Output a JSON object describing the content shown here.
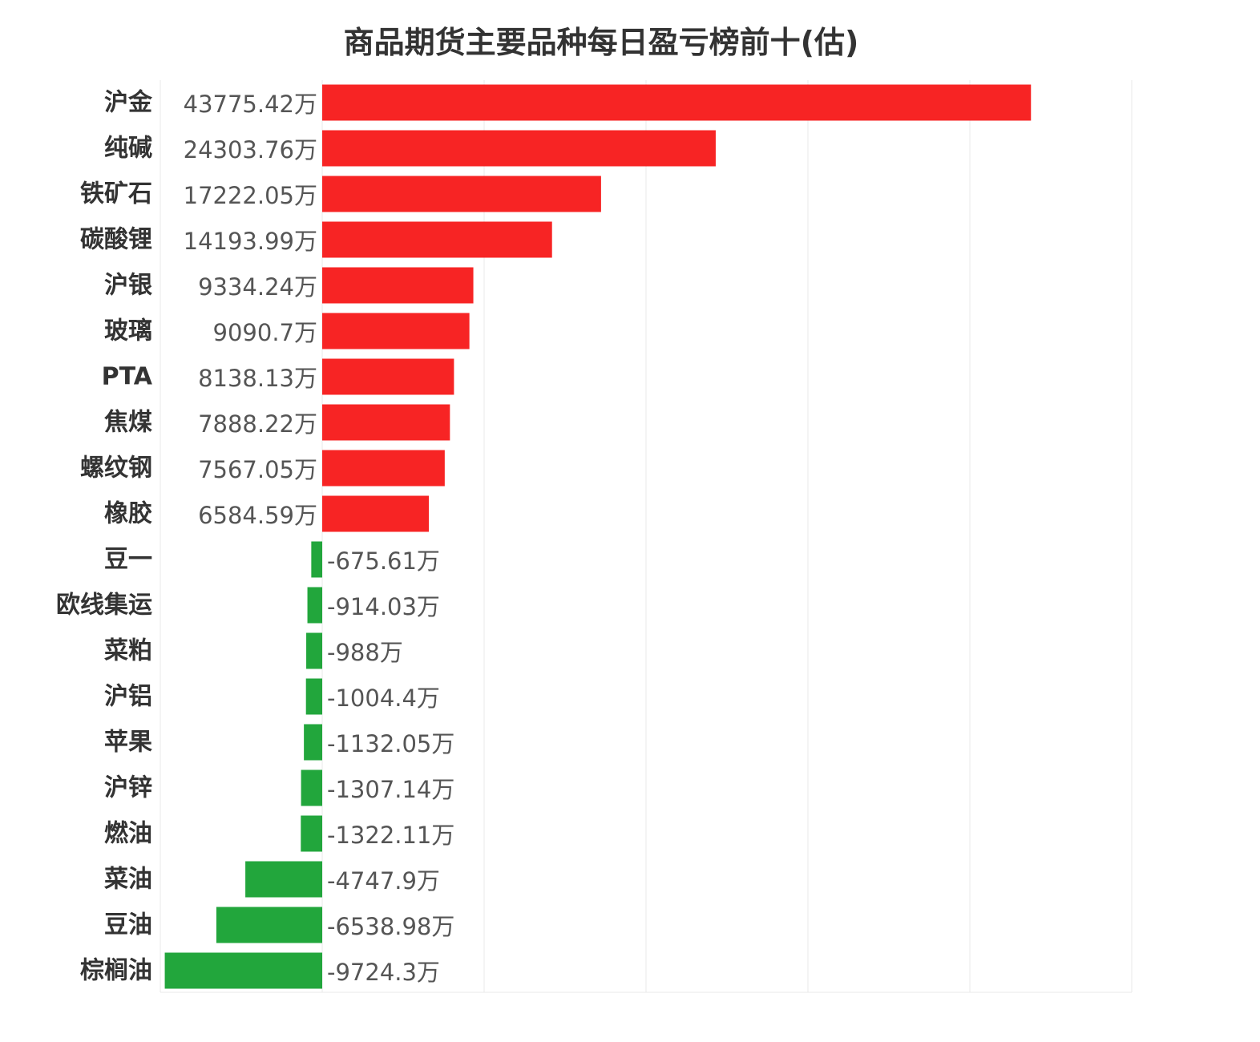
{
  "title": "商品期货主要品种每日盈亏榜前十(估)",
  "chart_data": {
    "type": "bar",
    "orientation": "horizontal",
    "title": "商品期货主要品种每日盈亏榜前十(估)",
    "categories": [
      "沪金",
      "纯碱",
      "铁矿石",
      "碳酸锂",
      "沪银",
      "玻璃",
      "PTA",
      "焦煤",
      "螺纹钢",
      "橡胶",
      "豆一",
      "欧线集运",
      "菜粕",
      "沪铝",
      "苹果",
      "沪锌",
      "燃油",
      "菜油",
      "豆油",
      "棕榈油"
    ],
    "values": [
      43775.42,
      24303.76,
      17222.05,
      14193.99,
      9334.24,
      9090.7,
      8138.13,
      7888.22,
      7567.05,
      6584.59,
      -675.61,
      -914.03,
      -988,
      -1004.4,
      -1132.05,
      -1307.14,
      -1322.11,
      -4747.9,
      -6538.98,
      -9724.3
    ],
    "value_labels": [
      "43775.42万",
      "24303.76万",
      "17222.05万",
      "14193.99万",
      "9334.24万",
      "9090.7万",
      "8138.13万",
      "7888.22万",
      "7567.05万",
      "6584.59万",
      "-675.61万",
      "-914.03万",
      "-988万",
      "-1004.4万",
      "-1132.05万",
      "-1307.14万",
      "-1322.11万",
      "-4747.9万",
      "-6538.98万",
      "-9724.3万"
    ],
    "unit": "万",
    "xlim": [
      -10000,
      50000
    ],
    "grid": true,
    "colors": {
      "positive": "#f72424",
      "negative": "#22a63c",
      "grid": "#e8e8e8"
    }
  }
}
